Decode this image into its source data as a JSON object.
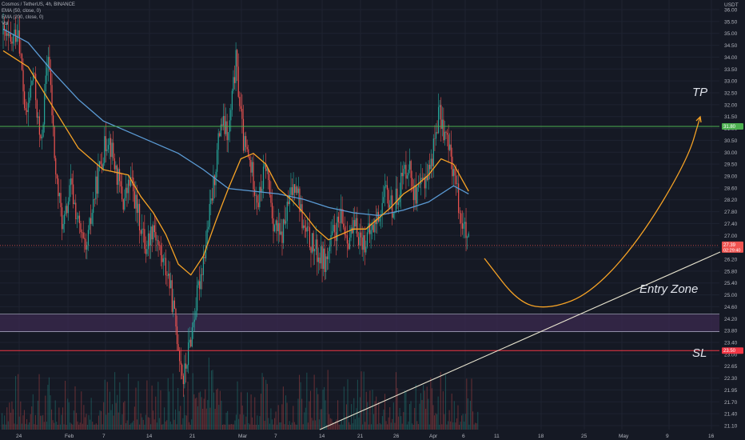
{
  "legend": {
    "symbol": "Cosmos / TetherUS, 4h, BINANCE",
    "ema1": "EMA (50, close, 0)",
    "ema2": "EMA (200, close, 0)",
    "vol": "Vol"
  },
  "colors": {
    "bg": "#151924",
    "grid": "#1e2331",
    "up": "#26a69a",
    "down": "#ef5350",
    "ema_fast": "#f7a325",
    "ema_slow": "#5b9bd5",
    "tp_line": "#4caf50",
    "sl_line": "#f23645",
    "zone_fill": "#3b2a4f",
    "zone_border": "#9e9eb4",
    "trendline": "#e8e4cf",
    "projection": "#f7a325"
  },
  "chart_data": {
    "type": "candlestick",
    "title": "",
    "quote_unit": "USDT",
    "y_ticks": [
      "36.00",
      "35.50",
      "35.00",
      "34.50",
      "34.00",
      "33.50",
      "33.00",
      "32.50",
      "32.00",
      "31.50",
      "31.00",
      "30.50",
      "30.00",
      "29.50",
      "29.00",
      "28.60",
      "28.20",
      "27.80",
      "27.40",
      "27.00",
      "26.60",
      "26.20",
      "25.80",
      "25.40",
      "25.00",
      "24.60",
      "24.20",
      "23.80",
      "23.40",
      "23.00",
      "22.65",
      "22.30",
      "21.95",
      "21.70",
      "21.40",
      "21.10"
    ],
    "x_ticks": [
      "24",
      "Feb",
      "7",
      "14",
      "21",
      "Mar",
      "7",
      "14",
      "21",
      "26",
      "Apr",
      "6",
      "11",
      "18",
      "25",
      "May",
      "9",
      "16"
    ],
    "ylim": [
      20.9,
      36.3
    ],
    "levels": {
      "tp": {
        "label": "TP",
        "price": 31.8,
        "tag": "31.80"
      },
      "entry_zone": {
        "label": "Entry Zone",
        "top": 24.85,
        "bottom": 24.2
      },
      "sl": {
        "label": "SL",
        "price": 23.5,
        "tag": "23.50"
      },
      "current_price": {
        "value": 27.39,
        "tag": "27.39",
        "countdown": "02:29:40"
      }
    },
    "price_path": [
      [
        0,
        35.2
      ],
      [
        3,
        34.8
      ],
      [
        6,
        35.5
      ],
      [
        9,
        32.0
      ],
      [
        12,
        33.8
      ],
      [
        15,
        31.0
      ],
      [
        18,
        34.6
      ],
      [
        21,
        30.0
      ],
      [
        24,
        28.0
      ],
      [
        27,
        29.6
      ],
      [
        30,
        28.2
      ],
      [
        33,
        27.0
      ],
      [
        36,
        29.0
      ],
      [
        39,
        30.5
      ],
      [
        42,
        31.5
      ],
      [
        45,
        30.2
      ],
      [
        48,
        29.0
      ],
      [
        51,
        29.8
      ],
      [
        54,
        28.5
      ],
      [
        57,
        27.3
      ],
      [
        60,
        28.2
      ],
      [
        63,
        27.0
      ],
      [
        66,
        26.3
      ],
      [
        69,
        24.4
      ],
      [
        72,
        22.4
      ],
      [
        75,
        24.0
      ],
      [
        78,
        25.8
      ],
      [
        81,
        27.5
      ],
      [
        84,
        29.6
      ],
      [
        87,
        32.0
      ],
      [
        90,
        31.4
      ],
      [
        93,
        34.2
      ],
      [
        96,
        31.2
      ],
      [
        99,
        30.3
      ],
      [
        102,
        29.0
      ],
      [
        105,
        30.4
      ],
      [
        108,
        28.3
      ],
      [
        111,
        27.6
      ],
      [
        114,
        28.9
      ],
      [
        117,
        29.9
      ],
      [
        120,
        28.0
      ],
      [
        123,
        27.5
      ],
      [
        126,
        27.0
      ],
      [
        129,
        26.8
      ],
      [
        132,
        27.8
      ],
      [
        135,
        28.3
      ],
      [
        138,
        27.7
      ],
      [
        141,
        28.0
      ],
      [
        144,
        27.5
      ],
      [
        147,
        27.9
      ],
      [
        150,
        28.5
      ],
      [
        153,
        29.3
      ],
      [
        156,
        28.7
      ],
      [
        159,
        29.8
      ],
      [
        162,
        30.5
      ],
      [
        165,
        29.0
      ],
      [
        168,
        29.8
      ],
      [
        171,
        30.4
      ],
      [
        174,
        32.3
      ],
      [
        177,
        31.4
      ],
      [
        180,
        30.2
      ],
      [
        183,
        28.4
      ],
      [
        186,
        27.4
      ]
    ],
    "ema_fast": [
      [
        0,
        34.6
      ],
      [
        10,
        34.0
      ],
      [
        20,
        32.5
      ],
      [
        30,
        31.0
      ],
      [
        40,
        30.2
      ],
      [
        50,
        30.0
      ],
      [
        55,
        29.2
      ],
      [
        60,
        28.6
      ],
      [
        65,
        27.8
      ],
      [
        70,
        26.7
      ],
      [
        75,
        26.3
      ],
      [
        80,
        27.0
      ],
      [
        85,
        28.3
      ],
      [
        90,
        29.5
      ],
      [
        95,
        30.6
      ],
      [
        100,
        30.8
      ],
      [
        105,
        30.4
      ],
      [
        110,
        29.5
      ],
      [
        115,
        29.1
      ],
      [
        120,
        28.6
      ],
      [
        125,
        28.0
      ],
      [
        130,
        27.6
      ],
      [
        135,
        27.8
      ],
      [
        140,
        28.0
      ],
      [
        145,
        28.0
      ],
      [
        150,
        28.4
      ],
      [
        155,
        28.8
      ],
      [
        160,
        29.3
      ],
      [
        165,
        29.6
      ],
      [
        170,
        30.0
      ],
      [
        175,
        30.6
      ],
      [
        180,
        30.4
      ],
      [
        186,
        29.4
      ]
    ],
    "ema_slow": [
      [
        0,
        35.4
      ],
      [
        10,
        34.9
      ],
      [
        20,
        33.8
      ],
      [
        30,
        32.8
      ],
      [
        40,
        32.0
      ],
      [
        50,
        31.6
      ],
      [
        60,
        31.2
      ],
      [
        70,
        30.8
      ],
      [
        80,
        30.2
      ],
      [
        90,
        29.5
      ],
      [
        100,
        29.4
      ],
      [
        110,
        29.3
      ],
      [
        120,
        29.1
      ],
      [
        130,
        28.8
      ],
      [
        140,
        28.6
      ],
      [
        150,
        28.5
      ],
      [
        160,
        28.7
      ],
      [
        170,
        29.0
      ],
      [
        180,
        29.6
      ],
      [
        186,
        29.3
      ]
    ],
    "projection": [
      [
        606,
        323
      ],
      [
        650,
        380
      ],
      [
        690,
        386
      ],
      [
        740,
        366
      ],
      [
        800,
        300
      ],
      [
        860,
        200
      ],
      [
        876,
        146
      ]
    ],
    "trendline": [
      [
        400,
        537
      ],
      [
        901,
        315
      ]
    ]
  }
}
